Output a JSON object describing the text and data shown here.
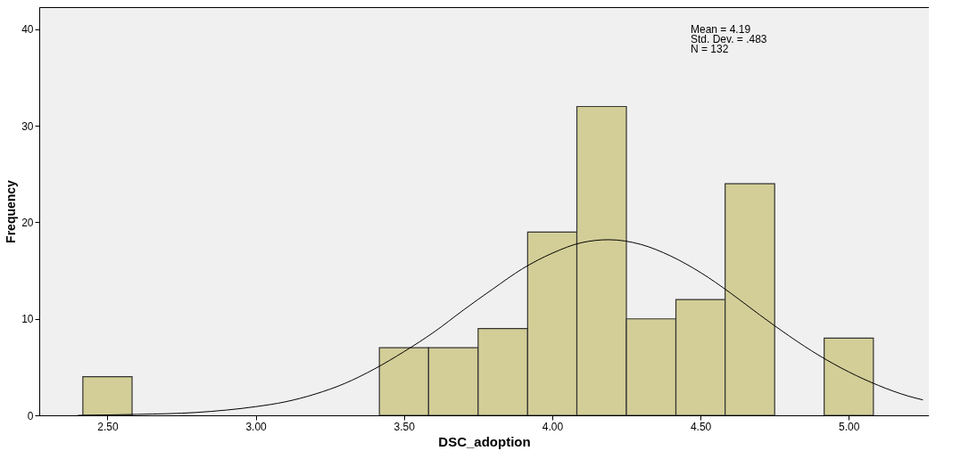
{
  "chart_data": {
    "type": "histogram",
    "xlabel": "DSC_adoption",
    "ylabel": "Frequency",
    "bins": [
      2.417,
      2.583,
      2.75,
      2.917,
      3.083,
      3.25,
      3.417,
      3.583,
      3.75,
      3.917,
      4.083,
      4.25,
      4.417,
      4.583,
      4.75,
      4.917,
      5.083
    ],
    "values": [
      4,
      0,
      0,
      0,
      0,
      0,
      7,
      7,
      9,
      19,
      32,
      10,
      12,
      24,
      0,
      8
    ],
    "color": "#d3ce97",
    "series": [
      {
        "type": "line",
        "color": "#000000",
        "x": [
          2.4,
          2.6,
          2.8,
          3.0,
          3.1,
          3.2,
          3.3,
          3.4,
          3.5,
          3.6,
          3.7,
          3.8,
          3.9,
          4.0,
          4.1,
          4.19,
          4.3,
          4.4,
          4.5,
          4.6,
          4.7,
          4.8,
          4.9,
          5.0,
          5.1,
          5.2,
          5.25
        ],
        "values": [
          0.0,
          0.1,
          0.3,
          0.9,
          1.4,
          2.2,
          3.3,
          4.8,
          6.6,
          8.6,
          10.9,
          13.1,
          15.2,
          16.8,
          17.9,
          18.2,
          17.7,
          16.5,
          14.8,
          12.7,
          10.4,
          8.2,
          6.2,
          4.5,
          3.1,
          2.0,
          1.6
        ]
      }
    ],
    "xlim": [
      2.27,
      5.27
    ],
    "ylim": [
      0,
      42.3
    ],
    "xticks": [
      {
        "value": 2.5,
        "label": "2.50"
      },
      {
        "value": 3.0,
        "label": "3.00"
      },
      {
        "value": 3.5,
        "label": "3.50"
      },
      {
        "value": 4.0,
        "label": "4.00"
      },
      {
        "value": 4.5,
        "label": "4.50"
      },
      {
        "value": 5.0,
        "label": "5.00"
      }
    ],
    "yticks": [
      0,
      10,
      20,
      30,
      40
    ],
    "annotations": [
      "Mean = 4.19",
      "Std. Dev. = .483",
      "N = 132"
    ],
    "grid": false
  }
}
